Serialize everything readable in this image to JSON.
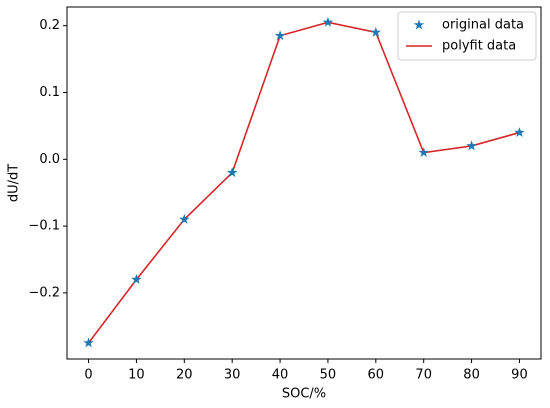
{
  "chart_data": {
    "type": "line",
    "xlabel": "SOC/%",
    "ylabel": "dU/dT",
    "x": [
      0,
      10,
      20,
      30,
      40,
      50,
      60,
      70,
      80,
      90
    ],
    "series": [
      {
        "name": "original data",
        "color": "#1f77b4",
        "kind": "scatter",
        "marker": "star",
        "values": [
          -0.275,
          -0.18,
          -0.09,
          -0.02,
          0.185,
          0.205,
          0.19,
          0.01,
          0.02,
          0.04
        ]
      },
      {
        "name": "polyfit data",
        "color": "#d62728",
        "kind": "line",
        "values": [
          -0.275,
          -0.18,
          -0.09,
          -0.02,
          0.185,
          0.205,
          0.19,
          0.01,
          0.02,
          0.04
        ]
      }
    ],
    "xlim": [
      -4.5,
      94.5
    ],
    "xticks": [
      0,
      10,
      20,
      30,
      40,
      50,
      60,
      70,
      80,
      90
    ],
    "ylim": [
      -0.299,
      0.228
    ],
    "yticks": [
      {
        "value": -0.2,
        "label": "−0.2"
      },
      {
        "value": -0.1,
        "label": "−0.1"
      },
      {
        "value": 0,
        "label": "0.0"
      },
      0.1,
      0.2
    ],
    "grid": false,
    "legend": "upper right"
  }
}
